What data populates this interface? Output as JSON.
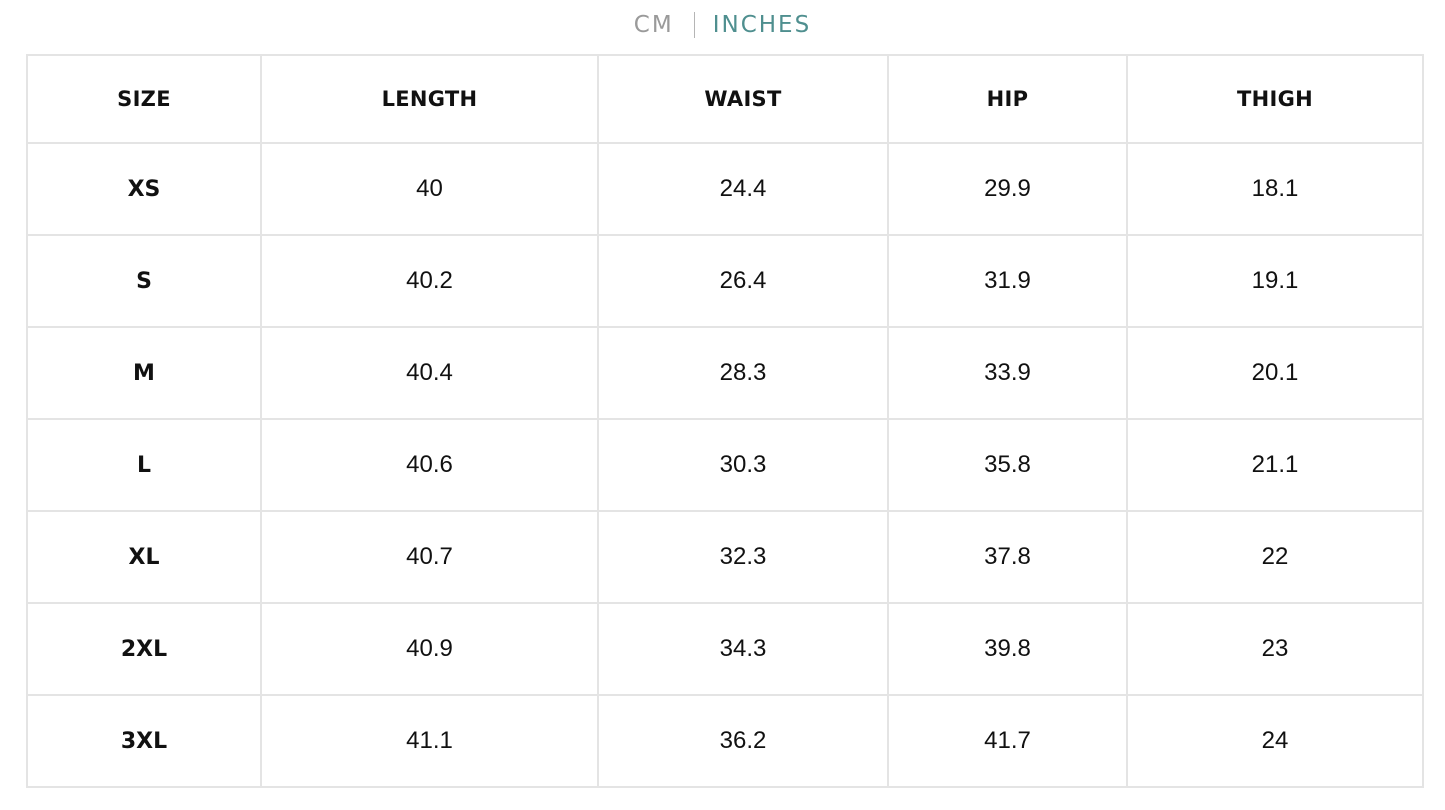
{
  "unit_toggle": {
    "cm_label": "CM",
    "inches_label": "INCHES",
    "active": "INCHES"
  },
  "table": {
    "headers": [
      "SIZE",
      "LENGTH",
      "WAIST",
      "HIP",
      "THIGH"
    ],
    "rows": [
      [
        "XS",
        "40",
        "24.4",
        "29.9",
        "18.1"
      ],
      [
        "S",
        "40.2",
        "26.4",
        "31.9",
        "19.1"
      ],
      [
        "M",
        "40.4",
        "28.3",
        "33.9",
        "20.1"
      ],
      [
        "L",
        "40.6",
        "30.3",
        "35.8",
        "21.1"
      ],
      [
        "XL",
        "40.7",
        "32.3",
        "37.8",
        "22"
      ],
      [
        "2XL",
        "40.9",
        "34.3",
        "39.8",
        "23"
      ],
      [
        "3XL",
        "41.1",
        "36.2",
        "41.7",
        "24"
      ]
    ]
  },
  "colors": {
    "active_unit": "#4f8f8f",
    "inactive_unit": "#9a9a9a",
    "border": "#e4e4e4",
    "text": "#111111"
  }
}
